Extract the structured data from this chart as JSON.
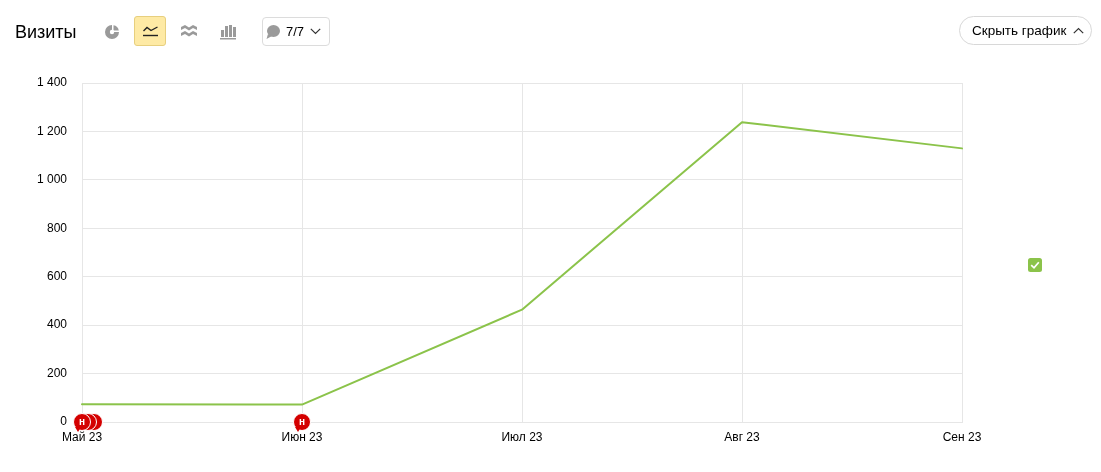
{
  "chart_data": {
    "type": "line",
    "title": "Визиты",
    "categories": [
      "Май 23",
      "Июн 23",
      "Июл 23",
      "Авг 23",
      "Сен 23"
    ],
    "series": [
      {
        "color": "#8bc34a",
        "values": [
          73,
          72,
          464,
          1238,
          1130
        ]
      }
    ],
    "ylim": [
      0,
      1400
    ],
    "yticks": [
      0,
      200,
      400,
      600,
      800,
      {
        "value": 1000,
        "label": "1 000"
      },
      {
        "value": 1200,
        "label": "1 200"
      },
      {
        "value": 1400,
        "label": "1 400"
      }
    ],
    "grid": true,
    "marker": "none",
    "line_style": "solid",
    "annotations": [
      "7/7",
      "Скрыть график",
      {
        "text": "н",
        "x": "Май 23",
        "y": 0
      },
      {
        "text": "н",
        "x": "Июн 23",
        "y": 0
      }
    ]
  }
}
